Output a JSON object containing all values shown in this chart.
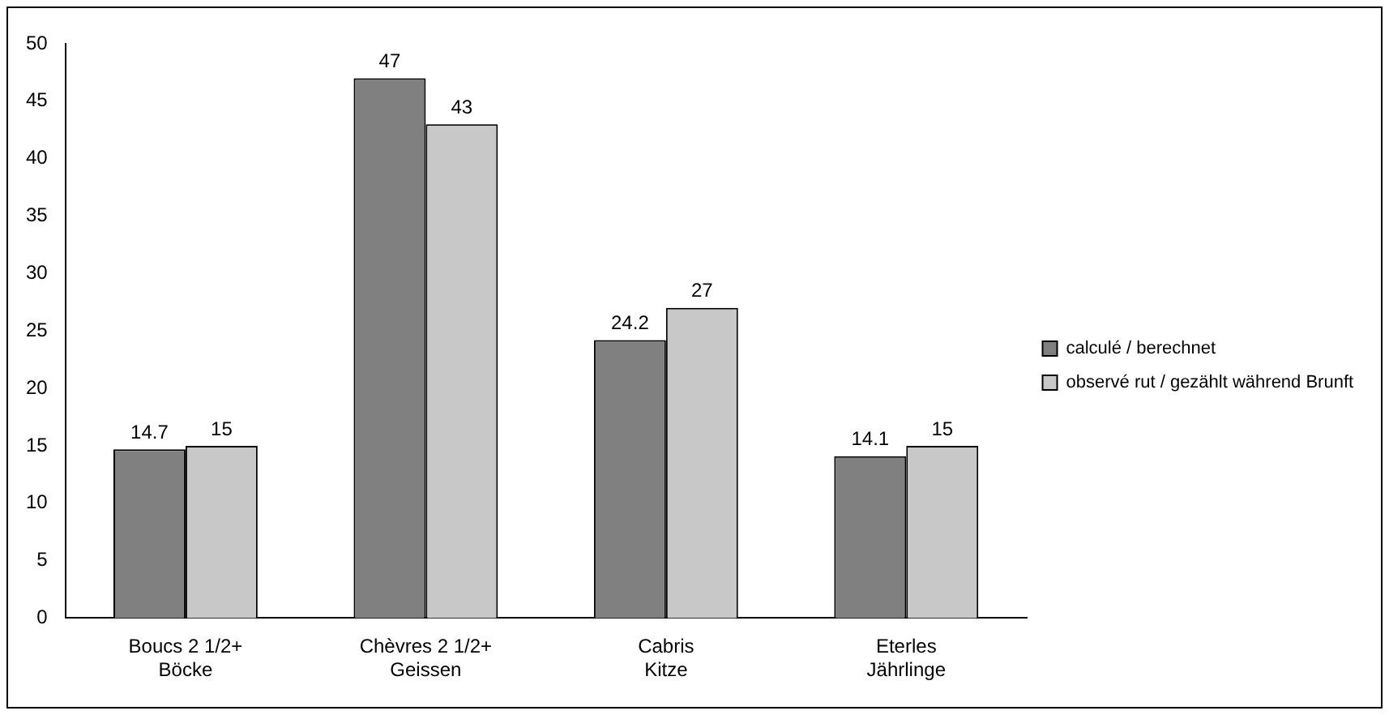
{
  "chart_data": {
    "type": "bar",
    "categories": [
      "Boucs 2 1/2+\nBöcke",
      "Chèvres 2 1/2+\nGeissen",
      "Cabris\nKitze",
      "Eterles\nJährlinge"
    ],
    "series": [
      {
        "name": "calculé / berechnet",
        "color": "#808080",
        "values": [
          14.7,
          47,
          24.2,
          14.1
        ]
      },
      {
        "name": "observé rut / gezählt während Brunft",
        "color": "#c8c8c8",
        "values": [
          15,
          43,
          27,
          15
        ]
      }
    ],
    "ylim": [
      0,
      50
    ],
    "yticks": [
      0,
      5,
      10,
      15,
      20,
      25,
      30,
      35,
      40,
      45,
      50
    ],
    "grid": false,
    "legend": "right",
    "data_labels": true
  }
}
